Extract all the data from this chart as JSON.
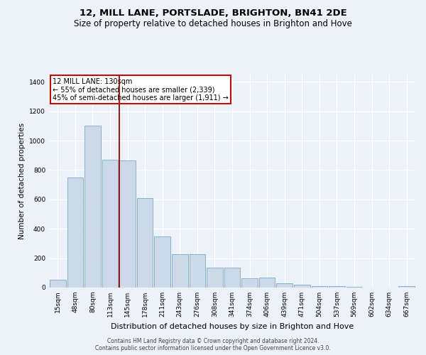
{
  "title": "12, MILL LANE, PORTSLADE, BRIGHTON, BN41 2DE",
  "subtitle": "Size of property relative to detached houses in Brighton and Hove",
  "xlabel": "Distribution of detached houses by size in Brighton and Hove",
  "ylabel": "Number of detached properties",
  "footer_line1": "Contains HM Land Registry data © Crown copyright and database right 2024.",
  "footer_line2": "Contains public sector information licensed under the Open Government Licence v3.0.",
  "bar_labels": [
    "15sqm",
    "48sqm",
    "80sqm",
    "113sqm",
    "145sqm",
    "178sqm",
    "211sqm",
    "243sqm",
    "276sqm",
    "308sqm",
    "341sqm",
    "374sqm",
    "406sqm",
    "439sqm",
    "471sqm",
    "504sqm",
    "537sqm",
    "569sqm",
    "602sqm",
    "634sqm",
    "667sqm"
  ],
  "bar_values": [
    52,
    750,
    1100,
    870,
    865,
    610,
    350,
    225,
    225,
    135,
    135,
    65,
    70,
    30,
    20,
    12,
    8,
    4,
    0,
    2,
    10
  ],
  "bar_color": "#ccd9e8",
  "bar_edge_color": "#7aaac8",
  "vline_x": 3.52,
  "vline_color": "#aa0000",
  "annotation_text": "12 MILL LANE: 130sqm\n← 55% of detached houses are smaller (2,339)\n45% of semi-detached houses are larger (1,911) →",
  "annotation_box_facecolor": "#ffffff",
  "annotation_box_edgecolor": "#cc0000",
  "ylim": [
    0,
    1450
  ],
  "yticks": [
    0,
    200,
    400,
    600,
    800,
    1000,
    1200,
    1400
  ],
  "background_color": "#edf1f8",
  "plot_bg_color": "#edf1f8",
  "grid_color": "#ffffff",
  "title_fontsize": 9.5,
  "subtitle_fontsize": 8.5,
  "tick_fontsize": 6.5,
  "ylabel_fontsize": 7.5,
  "xlabel_fontsize": 8,
  "annotation_fontsize": 7,
  "footer_fontsize": 5.5
}
